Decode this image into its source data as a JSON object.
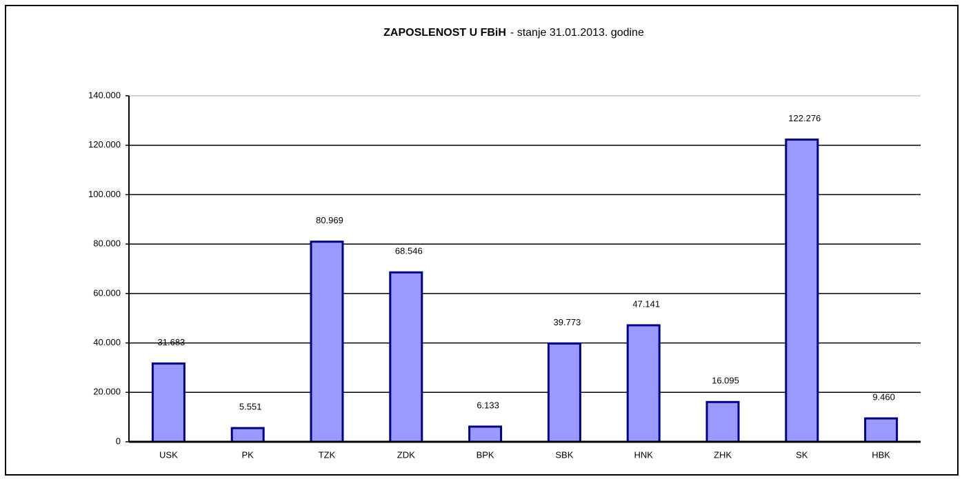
{
  "chart_data": {
    "type": "bar",
    "title": "ZAPOSLENOST U FBiH",
    "subtitle": "- stanje 31.01.2013. godine",
    "categories": [
      "USK",
      "PK",
      "TZK",
      "ZDK",
      "BPK",
      "SBK",
      "HNK",
      "ZHK",
      "SK",
      "HBK"
    ],
    "values": [
      31683,
      5551,
      80969,
      68546,
      6133,
      39773,
      47141,
      16095,
      122276,
      9460
    ],
    "value_labels": [
      "31.683",
      "5.551",
      "80.969",
      "68.546",
      "6.133",
      "39.773",
      "47.141",
      "16.095",
      "122.276",
      "9.460"
    ],
    "color": "#9999ff",
    "edge_color": "#000080",
    "ylim": [
      0,
      140000
    ],
    "yticks": [
      0,
      {
        "value": 20000,
        "label": "20.000"
      },
      {
        "value": 40000,
        "label": "40.000"
      },
      {
        "value": 60000,
        "label": "60.000"
      },
      {
        "value": 80000,
        "label": "80.000"
      },
      {
        "value": 100000,
        "label": "100.000"
      },
      {
        "value": 120000,
        "label": "120.000"
      },
      {
        "value": 140000,
        "label": "140.000"
      }
    ],
    "grid": true
  }
}
